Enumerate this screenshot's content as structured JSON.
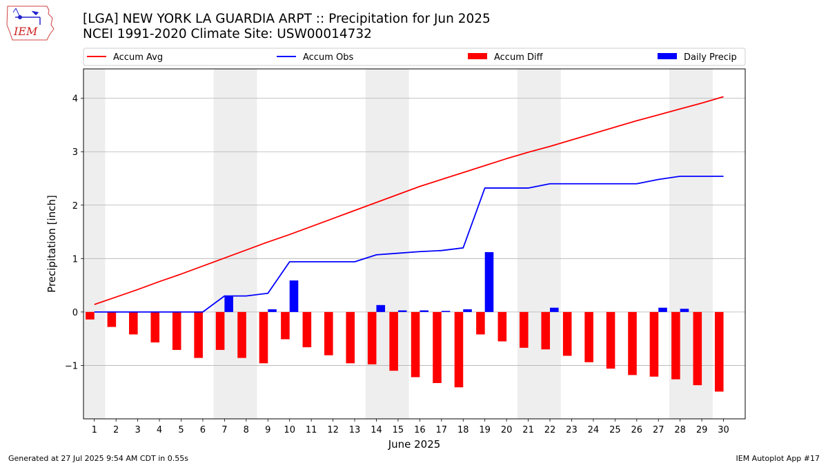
{
  "header": {
    "title_line1": "[LGA] NEW YORK LA GUARDIA ARPT :: Precipitation for Jun 2025",
    "title_line2": "NCEI 1991-2020 Climate Site: USW00014732",
    "logo_text": "IEM",
    "logo_icon": "iem-iowa-state-logo"
  },
  "footer": {
    "left": "Generated at 27 Jul 2025 9:54 AM CDT in 0.55s",
    "right": "IEM Autoplot App #17"
  },
  "chart_data": {
    "type": "bar",
    "xlabel": "June 2025",
    "ylabel": "Precipitation [inch]",
    "ylim": [
      -2.0,
      4.55
    ],
    "xlim": [
      0.5,
      31.0
    ],
    "yticks": [
      -1,
      0,
      1,
      2,
      3,
      4
    ],
    "ytick_labels": [
      "−1",
      "0",
      "1",
      "2",
      "3",
      "4"
    ],
    "x": [
      1,
      2,
      3,
      4,
      5,
      6,
      7,
      8,
      9,
      10,
      11,
      12,
      13,
      14,
      15,
      16,
      17,
      18,
      19,
      20,
      21,
      22,
      23,
      24,
      25,
      26,
      27,
      28,
      29,
      30
    ],
    "grid": "horizontal",
    "legend_position": "top",
    "weekend_bands": [
      [
        0.5,
        1.5
      ],
      [
        6.5,
        8.5
      ],
      [
        13.5,
        15.5
      ],
      [
        20.5,
        22.5
      ],
      [
        27.5,
        29.5
      ]
    ],
    "series": [
      {
        "name": "Accum Avg",
        "kind": "line",
        "color": "#ff0000",
        "values": [
          0.14,
          0.28,
          0.42,
          0.57,
          0.71,
          0.86,
          1.01,
          1.16,
          1.31,
          1.45,
          1.6,
          1.75,
          1.9,
          2.05,
          2.2,
          2.35,
          2.48,
          2.61,
          2.74,
          2.87,
          2.99,
          3.1,
          3.22,
          3.34,
          3.46,
          3.58,
          3.69,
          3.8,
          3.91,
          4.03
        ]
      },
      {
        "name": "Accum Obs",
        "kind": "line",
        "color": "#0000ff",
        "values": [
          0.0,
          0.0,
          0.0,
          0.0,
          0.0,
          0.0,
          0.3,
          0.3,
          0.35,
          0.94,
          0.94,
          0.94,
          0.94,
          1.07,
          1.1,
          1.13,
          1.15,
          1.2,
          2.32,
          2.32,
          2.32,
          2.4,
          2.4,
          2.4,
          2.4,
          2.4,
          2.48,
          2.54,
          2.54,
          2.54
        ]
      },
      {
        "name": "Accum Diff",
        "kind": "bar",
        "color": "#ff0000",
        "values": [
          -0.14,
          -0.28,
          -0.42,
          -0.57,
          -0.71,
          -0.86,
          -0.71,
          -0.86,
          -0.96,
          -0.51,
          -0.66,
          -0.81,
          -0.96,
          -0.98,
          -1.1,
          -1.22,
          -1.33,
          -1.41,
          -0.42,
          -0.55,
          -0.67,
          -0.7,
          -0.82,
          -0.94,
          -1.06,
          -1.18,
          -1.21,
          -1.26,
          -1.37,
          -1.49
        ]
      },
      {
        "name": "Daily Precip",
        "kind": "bar",
        "color": "#0000ff",
        "values": [
          0,
          0,
          0,
          0,
          0,
          0,
          0.3,
          0,
          0.05,
          0.59,
          0,
          0,
          0,
          0.13,
          0.03,
          0.03,
          0.02,
          0.05,
          1.12,
          0,
          0,
          0.08,
          0,
          0,
          0,
          0,
          0.08,
          0.06,
          0,
          0
        ]
      }
    ]
  }
}
